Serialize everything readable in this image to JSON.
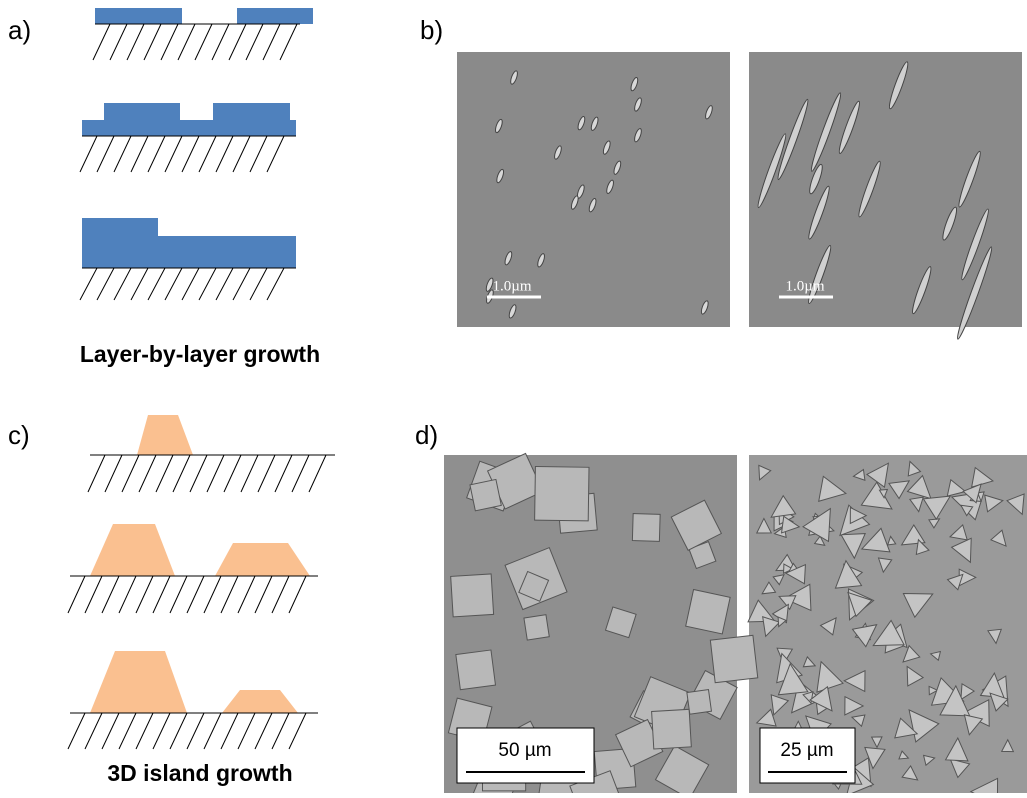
{
  "panels": [
    {
      "label": "a)",
      "caption": "Layer-by-layer growth"
    },
    {
      "label": "b)",
      "scale_bars": [
        "1.0µm",
        "1.0µm"
      ]
    },
    {
      "label": "c)",
      "caption": "3D island growth"
    },
    {
      "label": "d)",
      "scale_bars": [
        "50 µm",
        "25 µm"
      ]
    }
  ]
}
